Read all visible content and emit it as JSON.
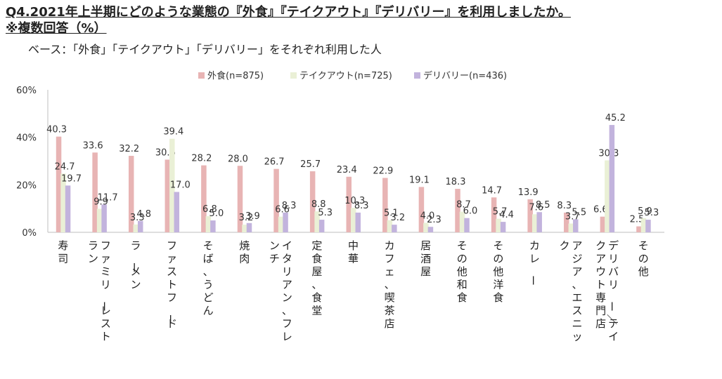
{
  "title_line1": "Q4.2021年上半期にどのような業態の『外食』『テイクアウト』『デリバリー』を利用しましたか。",
  "title_line2": "※複数回答（%）",
  "subtitle": "ベース：「外食」「テイクアウト」「デリバリー」をそれぞれ利用した人",
  "chart_data": {
    "type": "bar",
    "title": "",
    "xlabel": "",
    "ylabel": "",
    "ylim": [
      0,
      60
    ],
    "yticks": [
      "0%",
      "20%",
      "40%",
      "60%"
    ],
    "grid": false,
    "legend_position": "top",
    "categories": [
      "寿司",
      "ファミリーレストラン",
      "ラーメン",
      "ファストフード",
      "そば、うどん",
      "焼肉",
      "イタリアン、フレンチ",
      "定食屋、食堂",
      "中華",
      "カフェ、喫茶店",
      "居酒屋",
      "その他和食",
      "その他洋食",
      "カレー",
      "アジア、エスニック",
      "デリバリー／テイクアウト専門店",
      "その他"
    ],
    "series": [
      {
        "name": "外食(n=875)",
        "color": "#e8b4b4",
        "values": [
          40.3,
          33.6,
          32.2,
          30.6,
          28.2,
          28.0,
          26.7,
          25.7,
          23.4,
          22.9,
          19.1,
          18.3,
          14.7,
          13.9,
          8.3,
          6.6,
          2.5
        ]
      },
      {
        "name": "テイクアウト(n=725)",
        "color": "#eaf0d6",
        "values": [
          24.7,
          9.9,
          3.3,
          39.4,
          6.8,
          3.2,
          6.6,
          8.8,
          10.3,
          5.1,
          4.0,
          8.7,
          5.7,
          7.6,
          3.7,
          30.3,
          5.9
        ]
      },
      {
        "name": "デリバリー(n=436)",
        "color": "#c2b3dd",
        "values": [
          19.7,
          11.7,
          4.8,
          17.0,
          5.0,
          3.9,
          8.3,
          5.3,
          8.3,
          3.2,
          2.3,
          6.0,
          4.4,
          8.5,
          5.5,
          45.2,
          5.3
        ]
      }
    ]
  }
}
